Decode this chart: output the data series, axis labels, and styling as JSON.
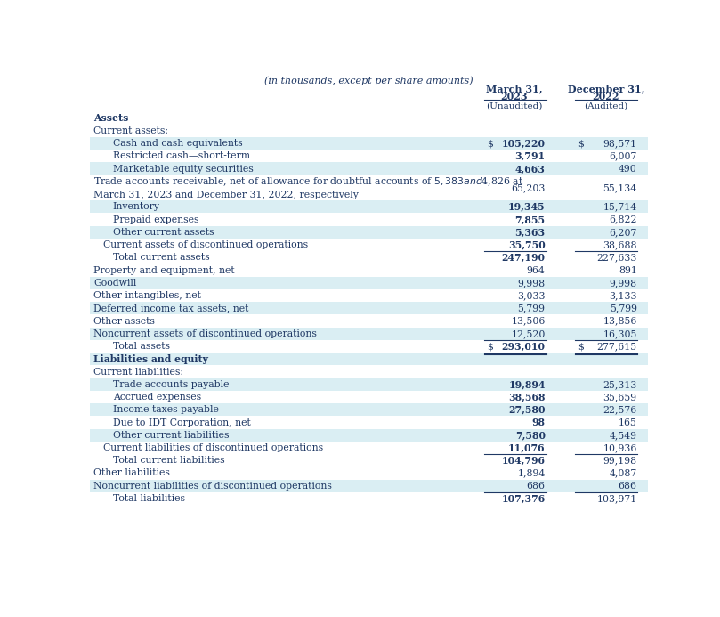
{
  "subtitle": "(in thousands, except per share amounts)",
  "col1_header_line1": "March 31,",
  "col1_header_line2": "2023",
  "col1_sub": "(Unaudited)",
  "col2_header_line1": "December 31,",
  "col2_header_line2": "2022",
  "col2_sub": "(Audited)",
  "bg_color": "#daeef3",
  "white_color": "#ffffff",
  "text_color": "#1f3864",
  "rows": [
    {
      "label": "Assets",
      "v1": "",
      "v2": "",
      "indent": 0,
      "bold": true,
      "bg": "white",
      "border_top": false,
      "border_bottom": false,
      "dollar1": false,
      "dollar2": false,
      "multiline": false
    },
    {
      "label": "Current assets:",
      "v1": "",
      "v2": "",
      "indent": 0,
      "bold": false,
      "bg": "white",
      "border_top": false,
      "border_bottom": false,
      "dollar1": false,
      "dollar2": false,
      "multiline": false
    },
    {
      "label": "Cash and cash equivalents",
      "v1": "105,220",
      "v2": "98,571",
      "indent": 2,
      "bold": false,
      "bg": "blue",
      "border_top": false,
      "border_bottom": false,
      "dollar1": true,
      "dollar2": true,
      "multiline": false
    },
    {
      "label": "Restricted cash—short-term",
      "v1": "3,791",
      "v2": "6,007",
      "indent": 2,
      "bold": false,
      "bg": "white",
      "border_top": false,
      "border_bottom": false,
      "dollar1": false,
      "dollar2": false,
      "multiline": false
    },
    {
      "label": "Marketable equity securities",
      "v1": "4,663",
      "v2": "490",
      "indent": 2,
      "bold": false,
      "bg": "blue",
      "border_top": false,
      "border_bottom": false,
      "dollar1": false,
      "dollar2": false,
      "multiline": false
    },
    {
      "label": "Trade accounts receivable, net of allowance for doubtful accounts of $5,383 and $4,826 at\nMarch 31, 2023 and December 31, 2022, respectively",
      "v1": "65,203",
      "v2": "55,134",
      "indent": 0,
      "bold": false,
      "bg": "white",
      "border_top": false,
      "border_bottom": false,
      "dollar1": false,
      "dollar2": false,
      "multiline": true
    },
    {
      "label": "Inventory",
      "v1": "19,345",
      "v2": "15,714",
      "indent": 2,
      "bold": false,
      "bg": "blue",
      "border_top": false,
      "border_bottom": false,
      "dollar1": false,
      "dollar2": false,
      "multiline": false
    },
    {
      "label": "Prepaid expenses",
      "v1": "7,855",
      "v2": "6,822",
      "indent": 2,
      "bold": false,
      "bg": "white",
      "border_top": false,
      "border_bottom": false,
      "dollar1": false,
      "dollar2": false,
      "multiline": false
    },
    {
      "label": "Other current assets",
      "v1": "5,363",
      "v2": "6,207",
      "indent": 2,
      "bold": false,
      "bg": "blue",
      "border_top": false,
      "border_bottom": false,
      "dollar1": false,
      "dollar2": false,
      "multiline": false
    },
    {
      "label": "Current assets of discontinued operations",
      "v1": "35,750",
      "v2": "38,688",
      "indent": 1,
      "bold": false,
      "bg": "white",
      "border_top": false,
      "border_bottom": false,
      "dollar1": false,
      "dollar2": false,
      "multiline": false
    },
    {
      "label": "Total current assets",
      "v1": "247,190",
      "v2": "227,633",
      "indent": 2,
      "bold": false,
      "bg": "white",
      "border_top": true,
      "border_bottom": false,
      "dollar1": false,
      "dollar2": false,
      "multiline": false
    },
    {
      "label": "Property and equipment, net",
      "v1": "964",
      "v2": "891",
      "indent": 0,
      "bold": false,
      "bg": "white",
      "border_top": false,
      "border_bottom": false,
      "dollar1": false,
      "dollar2": false,
      "multiline": false
    },
    {
      "label": "Goodwill",
      "v1": "9,998",
      "v2": "9,998",
      "indent": 0,
      "bold": false,
      "bg": "blue",
      "border_top": false,
      "border_bottom": false,
      "dollar1": false,
      "dollar2": false,
      "multiline": false
    },
    {
      "label": "Other intangibles, net",
      "v1": "3,033",
      "v2": "3,133",
      "indent": 0,
      "bold": false,
      "bg": "white",
      "border_top": false,
      "border_bottom": false,
      "dollar1": false,
      "dollar2": false,
      "multiline": false
    },
    {
      "label": "Deferred income tax assets, net",
      "v1": "5,799",
      "v2": "5,799",
      "indent": 0,
      "bold": false,
      "bg": "blue",
      "border_top": false,
      "border_bottom": false,
      "dollar1": false,
      "dollar2": false,
      "multiline": false
    },
    {
      "label": "Other assets",
      "v1": "13,506",
      "v2": "13,856",
      "indent": 0,
      "bold": false,
      "bg": "white",
      "border_top": false,
      "border_bottom": false,
      "dollar1": false,
      "dollar2": false,
      "multiline": false
    },
    {
      "label": "Noncurrent assets of discontinued operations",
      "v1": "12,520",
      "v2": "16,305",
      "indent": 0,
      "bold": false,
      "bg": "blue",
      "border_top": false,
      "border_bottom": false,
      "dollar1": false,
      "dollar2": false,
      "multiline": false
    },
    {
      "label": "Total assets",
      "v1": "293,010",
      "v2": "277,615",
      "indent": 2,
      "bold": false,
      "bg": "white",
      "border_top": true,
      "border_bottom": true,
      "dollar1": true,
      "dollar2": true,
      "multiline": false
    },
    {
      "label": "Liabilities and equity",
      "v1": "",
      "v2": "",
      "indent": 0,
      "bold": true,
      "bg": "blue",
      "border_top": false,
      "border_bottom": false,
      "dollar1": false,
      "dollar2": false,
      "multiline": false
    },
    {
      "label": "Current liabilities:",
      "v1": "",
      "v2": "",
      "indent": 0,
      "bold": false,
      "bg": "white",
      "border_top": false,
      "border_bottom": false,
      "dollar1": false,
      "dollar2": false,
      "multiline": false
    },
    {
      "label": "Trade accounts payable",
      "v1": "19,894",
      "v2": "25,313",
      "indent": 2,
      "bold": false,
      "bg": "blue",
      "border_top": false,
      "border_bottom": false,
      "dollar1": false,
      "dollar2": false,
      "multiline": false
    },
    {
      "label": "Accrued expenses",
      "v1": "38,568",
      "v2": "35,659",
      "indent": 2,
      "bold": false,
      "bg": "white",
      "border_top": false,
      "border_bottom": false,
      "dollar1": false,
      "dollar2": false,
      "multiline": false
    },
    {
      "label": "Income taxes payable",
      "v1": "27,580",
      "v2": "22,576",
      "indent": 2,
      "bold": false,
      "bg": "blue",
      "border_top": false,
      "border_bottom": false,
      "dollar1": false,
      "dollar2": false,
      "multiline": false
    },
    {
      "label": "Due to IDT Corporation, net",
      "v1": "98",
      "v2": "165",
      "indent": 2,
      "bold": false,
      "bg": "white",
      "border_top": false,
      "border_bottom": false,
      "dollar1": false,
      "dollar2": false,
      "multiline": false
    },
    {
      "label": "Other current liabilities",
      "v1": "7,580",
      "v2": "4,549",
      "indent": 2,
      "bold": false,
      "bg": "blue",
      "border_top": false,
      "border_bottom": false,
      "dollar1": false,
      "dollar2": false,
      "multiline": false
    },
    {
      "label": "Current liabilities of discontinued operations",
      "v1": "11,076",
      "v2": "10,936",
      "indent": 1,
      "bold": false,
      "bg": "white",
      "border_top": false,
      "border_bottom": false,
      "dollar1": false,
      "dollar2": false,
      "multiline": false
    },
    {
      "label": "Total current liabilities",
      "v1": "104,796",
      "v2": "99,198",
      "indent": 2,
      "bold": false,
      "bg": "white",
      "border_top": true,
      "border_bottom": false,
      "dollar1": false,
      "dollar2": false,
      "multiline": false
    },
    {
      "label": "Other liabilities",
      "v1": "1,894",
      "v2": "4,087",
      "indent": 0,
      "bold": false,
      "bg": "white",
      "border_top": false,
      "border_bottom": false,
      "dollar1": false,
      "dollar2": false,
      "multiline": false
    },
    {
      "label": "Noncurrent liabilities of discontinued operations",
      "v1": "686",
      "v2": "686",
      "indent": 0,
      "bold": false,
      "bg": "blue",
      "border_top": false,
      "border_bottom": false,
      "dollar1": false,
      "dollar2": false,
      "multiline": false
    },
    {
      "label": "Total liabilities",
      "v1": "107,376",
      "v2": "103,971",
      "indent": 2,
      "bold": false,
      "bg": "white",
      "border_top": true,
      "border_bottom": false,
      "dollar1": false,
      "dollar2": false,
      "multiline": false
    }
  ]
}
